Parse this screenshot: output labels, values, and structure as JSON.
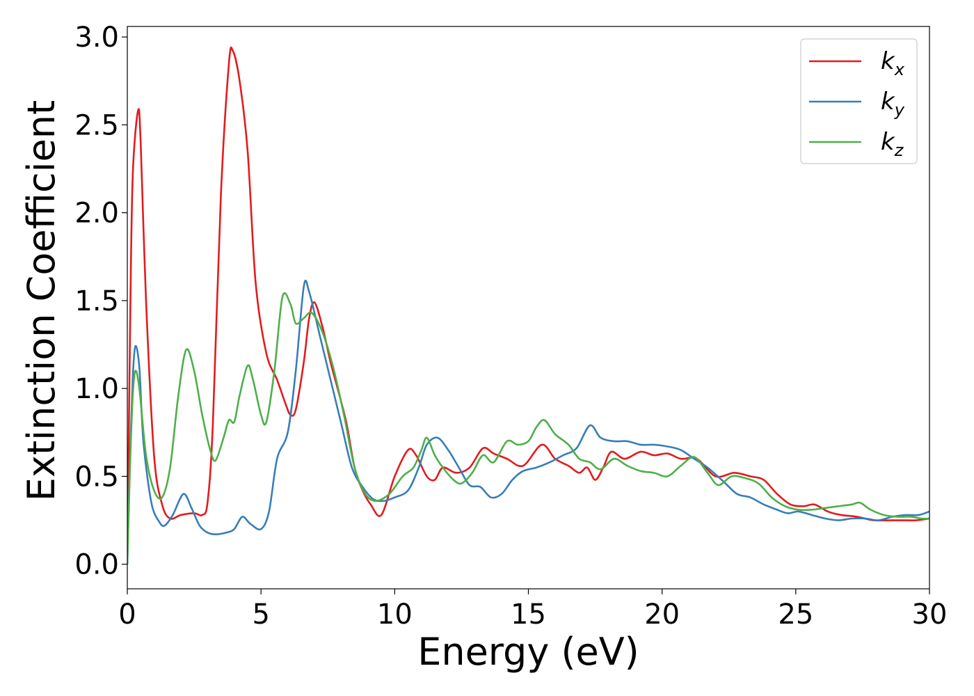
{
  "chart_data": {
    "type": "line",
    "xlabel": "Energy (eV)",
    "ylabel": "Extinction Coefficient",
    "xlim": [
      0,
      30
    ],
    "ylim": [
      -0.14,
      3.06
    ],
    "xticks": [
      0,
      5,
      10,
      15,
      20,
      25,
      30
    ],
    "yticks": [
      0.0,
      0.5,
      1.0,
      1.5,
      2.0,
      2.5,
      3.0
    ],
    "xtick_labels": [
      "0",
      "5",
      "10",
      "15",
      "20",
      "25",
      "30"
    ],
    "ytick_labels": [
      "0.0",
      "0.5",
      "1.0",
      "1.5",
      "2.0",
      "2.5",
      "3.0"
    ],
    "grid": false,
    "legend_position": "top-right",
    "series": [
      {
        "name": "k_x",
        "label_base": "k",
        "label_sub": "x",
        "color": "#e41a1c",
        "points": [
          [
            0,
            0
          ],
          [
            0.1,
            1.3
          ],
          [
            0.2,
            2.2
          ],
          [
            0.4,
            2.58
          ],
          [
            0.5,
            2.4
          ],
          [
            0.7,
            1.5
          ],
          [
            1.0,
            0.62
          ],
          [
            1.3,
            0.34
          ],
          [
            1.6,
            0.26
          ],
          [
            2.0,
            0.28
          ],
          [
            2.5,
            0.29
          ],
          [
            2.8,
            0.28
          ],
          [
            3.0,
            0.35
          ],
          [
            3.2,
            0.8
          ],
          [
            3.5,
            2.1
          ],
          [
            3.8,
            2.85
          ],
          [
            3.95,
            2.92
          ],
          [
            4.2,
            2.75
          ],
          [
            4.5,
            2.35
          ],
          [
            4.8,
            1.6
          ],
          [
            5.2,
            1.2
          ],
          [
            5.6,
            1.05
          ],
          [
            5.9,
            0.92
          ],
          [
            6.1,
            0.85
          ],
          [
            6.3,
            0.88
          ],
          [
            6.6,
            1.15
          ],
          [
            6.8,
            1.4
          ],
          [
            7.0,
            1.49
          ],
          [
            7.3,
            1.35
          ],
          [
            7.6,
            1.15
          ],
          [
            7.9,
            0.98
          ],
          [
            8.2,
            0.8
          ],
          [
            8.5,
            0.55
          ],
          [
            8.8,
            0.42
          ],
          [
            9.1,
            0.34
          ],
          [
            9.5,
            0.28
          ],
          [
            10.0,
            0.5
          ],
          [
            10.5,
            0.65
          ],
          [
            10.8,
            0.62
          ],
          [
            11.2,
            0.5
          ],
          [
            11.5,
            0.48
          ],
          [
            11.8,
            0.55
          ],
          [
            12.3,
            0.52
          ],
          [
            12.8,
            0.55
          ],
          [
            13.3,
            0.66
          ],
          [
            13.7,
            0.63
          ],
          [
            14.2,
            0.6
          ],
          [
            14.8,
            0.56
          ],
          [
            15.5,
            0.68
          ],
          [
            16.0,
            0.6
          ],
          [
            16.5,
            0.56
          ],
          [
            16.9,
            0.52
          ],
          [
            17.2,
            0.55
          ],
          [
            17.5,
            0.48
          ],
          [
            17.8,
            0.55
          ],
          [
            18.1,
            0.64
          ],
          [
            18.6,
            0.6
          ],
          [
            19.2,
            0.64
          ],
          [
            19.7,
            0.62
          ],
          [
            20.2,
            0.63
          ],
          [
            20.7,
            0.6
          ],
          [
            21.3,
            0.6
          ],
          [
            22.0,
            0.5
          ],
          [
            22.7,
            0.52
          ],
          [
            23.3,
            0.5
          ],
          [
            23.8,
            0.48
          ],
          [
            24.3,
            0.4
          ],
          [
            24.8,
            0.34
          ],
          [
            25.3,
            0.33
          ],
          [
            25.7,
            0.34
          ],
          [
            26.2,
            0.3
          ],
          [
            26.7,
            0.28
          ],
          [
            27.3,
            0.27
          ],
          [
            27.9,
            0.25
          ],
          [
            28.5,
            0.25
          ],
          [
            29.0,
            0.25
          ],
          [
            29.5,
            0.25
          ],
          [
            30.0,
            0.26
          ]
        ]
      },
      {
        "name": "k_y",
        "label_base": "k",
        "label_sub": "y",
        "color": "#377eb8",
        "points": [
          [
            0,
            0
          ],
          [
            0.1,
            0.6
          ],
          [
            0.2,
            1.05
          ],
          [
            0.3,
            1.24
          ],
          [
            0.45,
            1.12
          ],
          [
            0.6,
            0.7
          ],
          [
            0.9,
            0.35
          ],
          [
            1.2,
            0.24
          ],
          [
            1.4,
            0.22
          ],
          [
            1.7,
            0.28
          ],
          [
            2.1,
            0.4
          ],
          [
            2.4,
            0.32
          ],
          [
            2.7,
            0.22
          ],
          [
            3.0,
            0.18
          ],
          [
            3.3,
            0.17
          ],
          [
            3.7,
            0.18
          ],
          [
            4.0,
            0.2
          ],
          [
            4.3,
            0.27
          ],
          [
            4.6,
            0.23
          ],
          [
            5.0,
            0.2
          ],
          [
            5.3,
            0.3
          ],
          [
            5.6,
            0.6
          ],
          [
            6.0,
            0.75
          ],
          [
            6.3,
            1.1
          ],
          [
            6.6,
            1.58
          ],
          [
            6.8,
            1.55
          ],
          [
            7.2,
            1.3
          ],
          [
            7.6,
            1.05
          ],
          [
            8.0,
            0.8
          ],
          [
            8.4,
            0.55
          ],
          [
            8.8,
            0.44
          ],
          [
            9.2,
            0.37
          ],
          [
            9.6,
            0.36
          ],
          [
            10.0,
            0.38
          ],
          [
            10.5,
            0.42
          ],
          [
            10.9,
            0.55
          ],
          [
            11.2,
            0.68
          ],
          [
            11.6,
            0.72
          ],
          [
            12.0,
            0.65
          ],
          [
            12.4,
            0.55
          ],
          [
            12.8,
            0.45
          ],
          [
            13.2,
            0.44
          ],
          [
            13.6,
            0.38
          ],
          [
            14.0,
            0.4
          ],
          [
            14.4,
            0.48
          ],
          [
            14.8,
            0.53
          ],
          [
            15.3,
            0.55
          ],
          [
            15.8,
            0.58
          ],
          [
            16.3,
            0.62
          ],
          [
            16.8,
            0.66
          ],
          [
            17.3,
            0.79
          ],
          [
            17.7,
            0.72
          ],
          [
            18.2,
            0.7
          ],
          [
            18.7,
            0.7
          ],
          [
            19.2,
            0.68
          ],
          [
            19.7,
            0.68
          ],
          [
            20.2,
            0.67
          ],
          [
            20.7,
            0.65
          ],
          [
            21.2,
            0.6
          ],
          [
            21.7,
            0.55
          ],
          [
            22.3,
            0.47
          ],
          [
            22.8,
            0.4
          ],
          [
            23.3,
            0.38
          ],
          [
            23.8,
            0.34
          ],
          [
            24.3,
            0.31
          ],
          [
            24.7,
            0.29
          ],
          [
            25.1,
            0.3
          ],
          [
            25.6,
            0.28
          ],
          [
            26.1,
            0.26
          ],
          [
            26.6,
            0.25
          ],
          [
            27.1,
            0.26
          ],
          [
            27.6,
            0.26
          ],
          [
            28.1,
            0.25
          ],
          [
            28.6,
            0.27
          ],
          [
            29.1,
            0.28
          ],
          [
            29.6,
            0.28
          ],
          [
            30.0,
            0.3
          ]
        ]
      },
      {
        "name": "k_z",
        "label_base": "k",
        "label_sub": "z",
        "color": "#4daf4a",
        "points": [
          [
            0,
            0
          ],
          [
            0.1,
            0.55
          ],
          [
            0.2,
            0.95
          ],
          [
            0.3,
            1.1
          ],
          [
            0.45,
            1.0
          ],
          [
            0.7,
            0.62
          ],
          [
            1.0,
            0.42
          ],
          [
            1.3,
            0.38
          ],
          [
            1.6,
            0.55
          ],
          [
            1.9,
            0.95
          ],
          [
            2.2,
            1.22
          ],
          [
            2.5,
            1.1
          ],
          [
            2.8,
            0.85
          ],
          [
            3.1,
            0.65
          ],
          [
            3.3,
            0.59
          ],
          [
            3.6,
            0.72
          ],
          [
            3.8,
            0.82
          ],
          [
            4.0,
            0.81
          ],
          [
            4.2,
            0.96
          ],
          [
            4.5,
            1.13
          ],
          [
            4.7,
            1.05
          ],
          [
            5.0,
            0.85
          ],
          [
            5.2,
            0.81
          ],
          [
            5.5,
            1.1
          ],
          [
            5.8,
            1.52
          ],
          [
            6.1,
            1.48
          ],
          [
            6.3,
            1.37
          ],
          [
            6.6,
            1.4
          ],
          [
            6.9,
            1.43
          ],
          [
            7.3,
            1.32
          ],
          [
            7.7,
            1.12
          ],
          [
            8.1,
            0.85
          ],
          [
            8.5,
            0.55
          ],
          [
            8.9,
            0.4
          ],
          [
            9.3,
            0.36
          ],
          [
            9.8,
            0.4
          ],
          [
            10.3,
            0.5
          ],
          [
            10.7,
            0.55
          ],
          [
            11.0,
            0.65
          ],
          [
            11.2,
            0.72
          ],
          [
            11.5,
            0.62
          ],
          [
            11.8,
            0.55
          ],
          [
            12.2,
            0.48
          ],
          [
            12.5,
            0.46
          ],
          [
            12.9,
            0.52
          ],
          [
            13.3,
            0.62
          ],
          [
            13.7,
            0.58
          ],
          [
            14.2,
            0.7
          ],
          [
            14.6,
            0.68
          ],
          [
            15.0,
            0.7
          ],
          [
            15.3,
            0.78
          ],
          [
            15.6,
            0.82
          ],
          [
            16.0,
            0.74
          ],
          [
            16.5,
            0.68
          ],
          [
            16.9,
            0.6
          ],
          [
            17.3,
            0.58
          ],
          [
            17.7,
            0.54
          ],
          [
            18.2,
            0.6
          ],
          [
            18.7,
            0.56
          ],
          [
            19.2,
            0.53
          ],
          [
            19.7,
            0.52
          ],
          [
            20.2,
            0.5
          ],
          [
            20.7,
            0.56
          ],
          [
            21.2,
            0.61
          ],
          [
            21.7,
            0.52
          ],
          [
            22.1,
            0.45
          ],
          [
            22.6,
            0.5
          ],
          [
            23.1,
            0.49
          ],
          [
            23.6,
            0.46
          ],
          [
            24.1,
            0.38
          ],
          [
            24.6,
            0.33
          ],
          [
            25.1,
            0.31
          ],
          [
            25.6,
            0.31
          ],
          [
            26.1,
            0.32
          ],
          [
            26.6,
            0.33
          ],
          [
            27.1,
            0.34
          ],
          [
            27.4,
            0.35
          ],
          [
            27.8,
            0.31
          ],
          [
            28.3,
            0.28
          ],
          [
            28.8,
            0.27
          ],
          [
            29.3,
            0.27
          ],
          [
            29.7,
            0.26
          ],
          [
            30.0,
            0.26
          ]
        ]
      }
    ]
  }
}
